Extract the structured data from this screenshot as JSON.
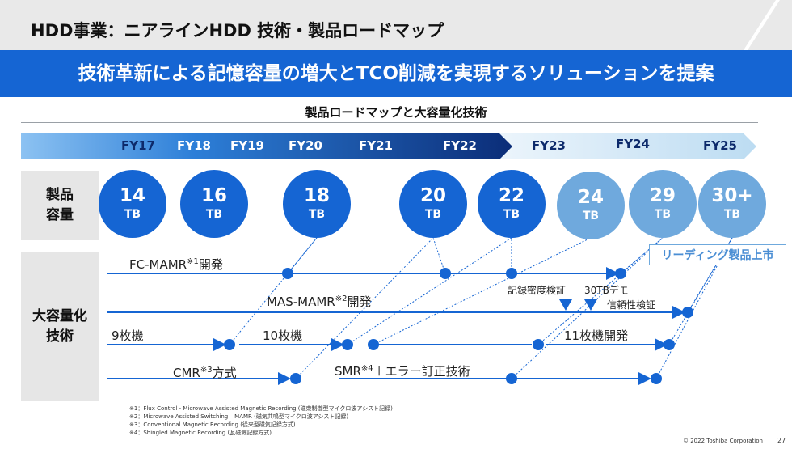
{
  "header": {
    "title": "HDD事業：ニアラインHDD 技術・製品ロードマップ",
    "headline": "技術革新による記憶容量の増大とTCO削減を実現するソリューションを提案"
  },
  "roadmap": {
    "subtitle": "製品ロードマップと大容量化技術",
    "fiscal_years": [
      "FY17",
      "FY18",
      "FY19",
      "FY20",
      "FY21",
      "FY22",
      "FY23",
      "FY24",
      "FY25"
    ]
  },
  "capacity_row": {
    "label_line1": "製品",
    "label_line2": "容量",
    "capacities": [
      {
        "value": "14",
        "unit": "TB",
        "style": "dark"
      },
      {
        "value": "16",
        "unit": "TB",
        "style": "dark"
      },
      {
        "value": "18",
        "unit": "TB",
        "style": "dark"
      },
      {
        "value": "20",
        "unit": "TB",
        "style": "dark"
      },
      {
        "value": "22",
        "unit": "TB",
        "style": "dark"
      },
      {
        "value": "24",
        "unit": "TB",
        "style": "light"
      },
      {
        "value": "29",
        "unit": "TB",
        "style": "light"
      },
      {
        "value": "30+",
        "unit": "TB",
        "style": "light"
      }
    ],
    "leading_product_note": "リーディング製品上市"
  },
  "tech_row": {
    "label_line1": "大容量化",
    "label_line2": "技術",
    "fc_mamr": {
      "text": "FC-MAMR",
      "note": "※1",
      "suffix": "開発"
    },
    "mas_mamr": {
      "text": "MAS-MAMR",
      "note": "※2",
      "suffix": "開発"
    },
    "platters_9": "9枚機",
    "platters_10": "10枚機",
    "platters_11": "11枚機開発",
    "cmr": {
      "text": "CMR",
      "note": "※3",
      "suffix": "方式"
    },
    "smr": {
      "text": "SMR",
      "note": "※4",
      "suffix": "＋エラー訂正技術"
    },
    "density_verify": "記録密度検証",
    "demo_30tb": "30TBデモ",
    "reliability_verify": "信頼性検証"
  },
  "footnotes": [
    "※1：Flux Control - Microwave Assisted Magnetic Recording (磁束制御型マイクロ波アシスト記録)",
    "※2：Microwave Assisted Switching – MAMR (磁気共鳴型マイクロ波アシスト記録)",
    "※3：Conventional Magnetic Recording (従来型磁気記録方式)",
    "※4：Shingled Magnetic Recording (瓦磁気記録方式)"
  ],
  "footer": {
    "copyright": "© 2022 Toshiba Corporation",
    "page_number": "27"
  },
  "colors": {
    "brand_blue": "#1565d3",
    "light_blue": "#6fa9dd",
    "title_gray": "#e9e9e9"
  }
}
